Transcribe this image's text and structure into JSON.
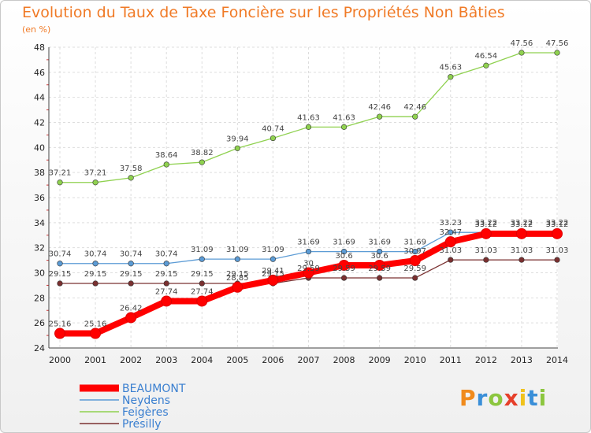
{
  "chart_data": {
    "type": "line",
    "title": "Evolution du Taux de Taxe Foncière sur les Propriétés Non Bâties",
    "unit_label": "(en %)",
    "categories": [
      "2000",
      "2001",
      "2002",
      "2003",
      "2004",
      "2005",
      "2006",
      "2007",
      "2008",
      "2009",
      "2010",
      "2011",
      "2012",
      "2013",
      "2014"
    ],
    "ylim": [
      24,
      48
    ],
    "yticks": [
      24,
      26,
      28,
      30,
      32,
      34,
      36,
      38,
      40,
      42,
      44,
      46,
      48
    ],
    "grid": true,
    "legend_position": "bottom-left",
    "series": [
      {
        "name": "BEAUMONT",
        "color": "#ff0000",
        "values": [
          25.16,
          25.16,
          26.42,
          27.74,
          27.74,
          28.85,
          29.41,
          30.0,
          30.6,
          30.6,
          30.97,
          32.47,
          33.12,
          33.12,
          33.12
        ],
        "labels": [
          "25.16",
          "25.16",
          "26.42",
          "27.74",
          "27.74",
          "28.85",
          "29.41",
          "30",
          "30.6",
          "30.6",
          "30.97",
          "32.47",
          "33.12",
          "33.12",
          "33.12"
        ]
      },
      {
        "name": "Neydens",
        "color": "#5b9bd5",
        "values": [
          30.74,
          30.74,
          30.74,
          30.74,
          31.09,
          31.09,
          31.09,
          31.69,
          31.69,
          31.69,
          31.69,
          33.23,
          33.22,
          33.22,
          33.22
        ],
        "labels": [
          "30.74",
          "30.74",
          "30.74",
          "30.74",
          "31.09",
          "31.09",
          "31.09",
          "31.69",
          "31.69",
          "31.69",
          "31.69",
          "33.23",
          "33.22",
          "33.22",
          "33.22"
        ]
      },
      {
        "name": "Feigères",
        "color": "#8fd14f",
        "values": [
          37.21,
          37.21,
          37.58,
          38.64,
          38.82,
          39.94,
          40.74,
          41.63,
          41.63,
          42.46,
          42.46,
          45.63,
          46.54,
          47.56,
          47.56
        ],
        "labels": [
          "37.21",
          "37.21",
          "37.58",
          "38.64",
          "38.82",
          "39.94",
          "40.74",
          "41.63",
          "41.63",
          "42.46",
          "42.46",
          "45.63",
          "46.54",
          "47.56",
          "47.56"
        ]
      },
      {
        "name": "Présilly",
        "color": "#7a3030",
        "values": [
          29.15,
          29.15,
          29.15,
          29.15,
          29.15,
          29.15,
          29.15,
          29.59,
          29.59,
          29.59,
          29.59,
          31.03,
          31.03,
          31.03,
          31.03
        ],
        "labels": [
          "29.15",
          "29.15",
          "29.15",
          "29.15",
          "29.15",
          "29.15",
          "29.15",
          "29.59",
          "29.59",
          "29.59",
          "29.59",
          "31.03",
          "31.03",
          "31.03",
          "31.03"
        ]
      }
    ]
  },
  "logo": {
    "letters": [
      "P",
      "r",
      "o",
      "x",
      "i",
      "t",
      "i"
    ],
    "colors": [
      "#f08a1c",
      "#3a8fd8",
      "#8cc63f",
      "#e63f2a",
      "#f0c21c",
      "#3a8fd8",
      "#8cc63f"
    ]
  }
}
